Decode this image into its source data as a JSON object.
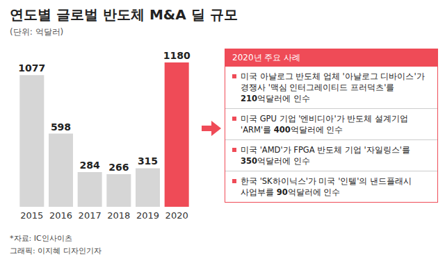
{
  "chart_data": {
    "type": "bar",
    "title": "연도별 글로벌 반도체 M&A 딜 규모",
    "subtitle": "(단위: 억달러)",
    "categories": [
      "2015",
      "2016",
      "2017",
      "2018",
      "2019",
      "2020"
    ],
    "values": [
      1077,
      598,
      284,
      266,
      315,
      1180
    ],
    "colors": [
      "#d6d6d6",
      "#d6d6d6",
      "#d6d6d6",
      "#d6d6d6",
      "#d6d6d6",
      "#ef4b57"
    ],
    "ylim": [
      0,
      1180
    ],
    "tick_labels": "x",
    "data_labels": true,
    "grid": false,
    "annotations": {
      "header": "2020년 주요 사례",
      "items": [
        [
          "미국 아날로그 반도체 업체 '아날로그 디바이스'가",
          "경쟁사 '맥심 인터그레이티드 프러덕츠'를",
          "210억달러에 인수"
        ],
        [
          "미국 GPU 기업 '엔비디아'가 반도체 설계기업",
          "'ARM'를 400억달러에 인수"
        ],
        [
          "미국 'AMD'가 FPGA 반도체 기업 '자일링스'를",
          "350억달러에 인수"
        ],
        [
          "한국 'SK하이닉스'가 미국 '인텔'의 낸드플래시",
          "사업부를 90억달러에 인수"
        ]
      ]
    },
    "source": "*자료: IC인사이츠",
    "credit": "그래픽: 이지혜 디자인기자"
  }
}
